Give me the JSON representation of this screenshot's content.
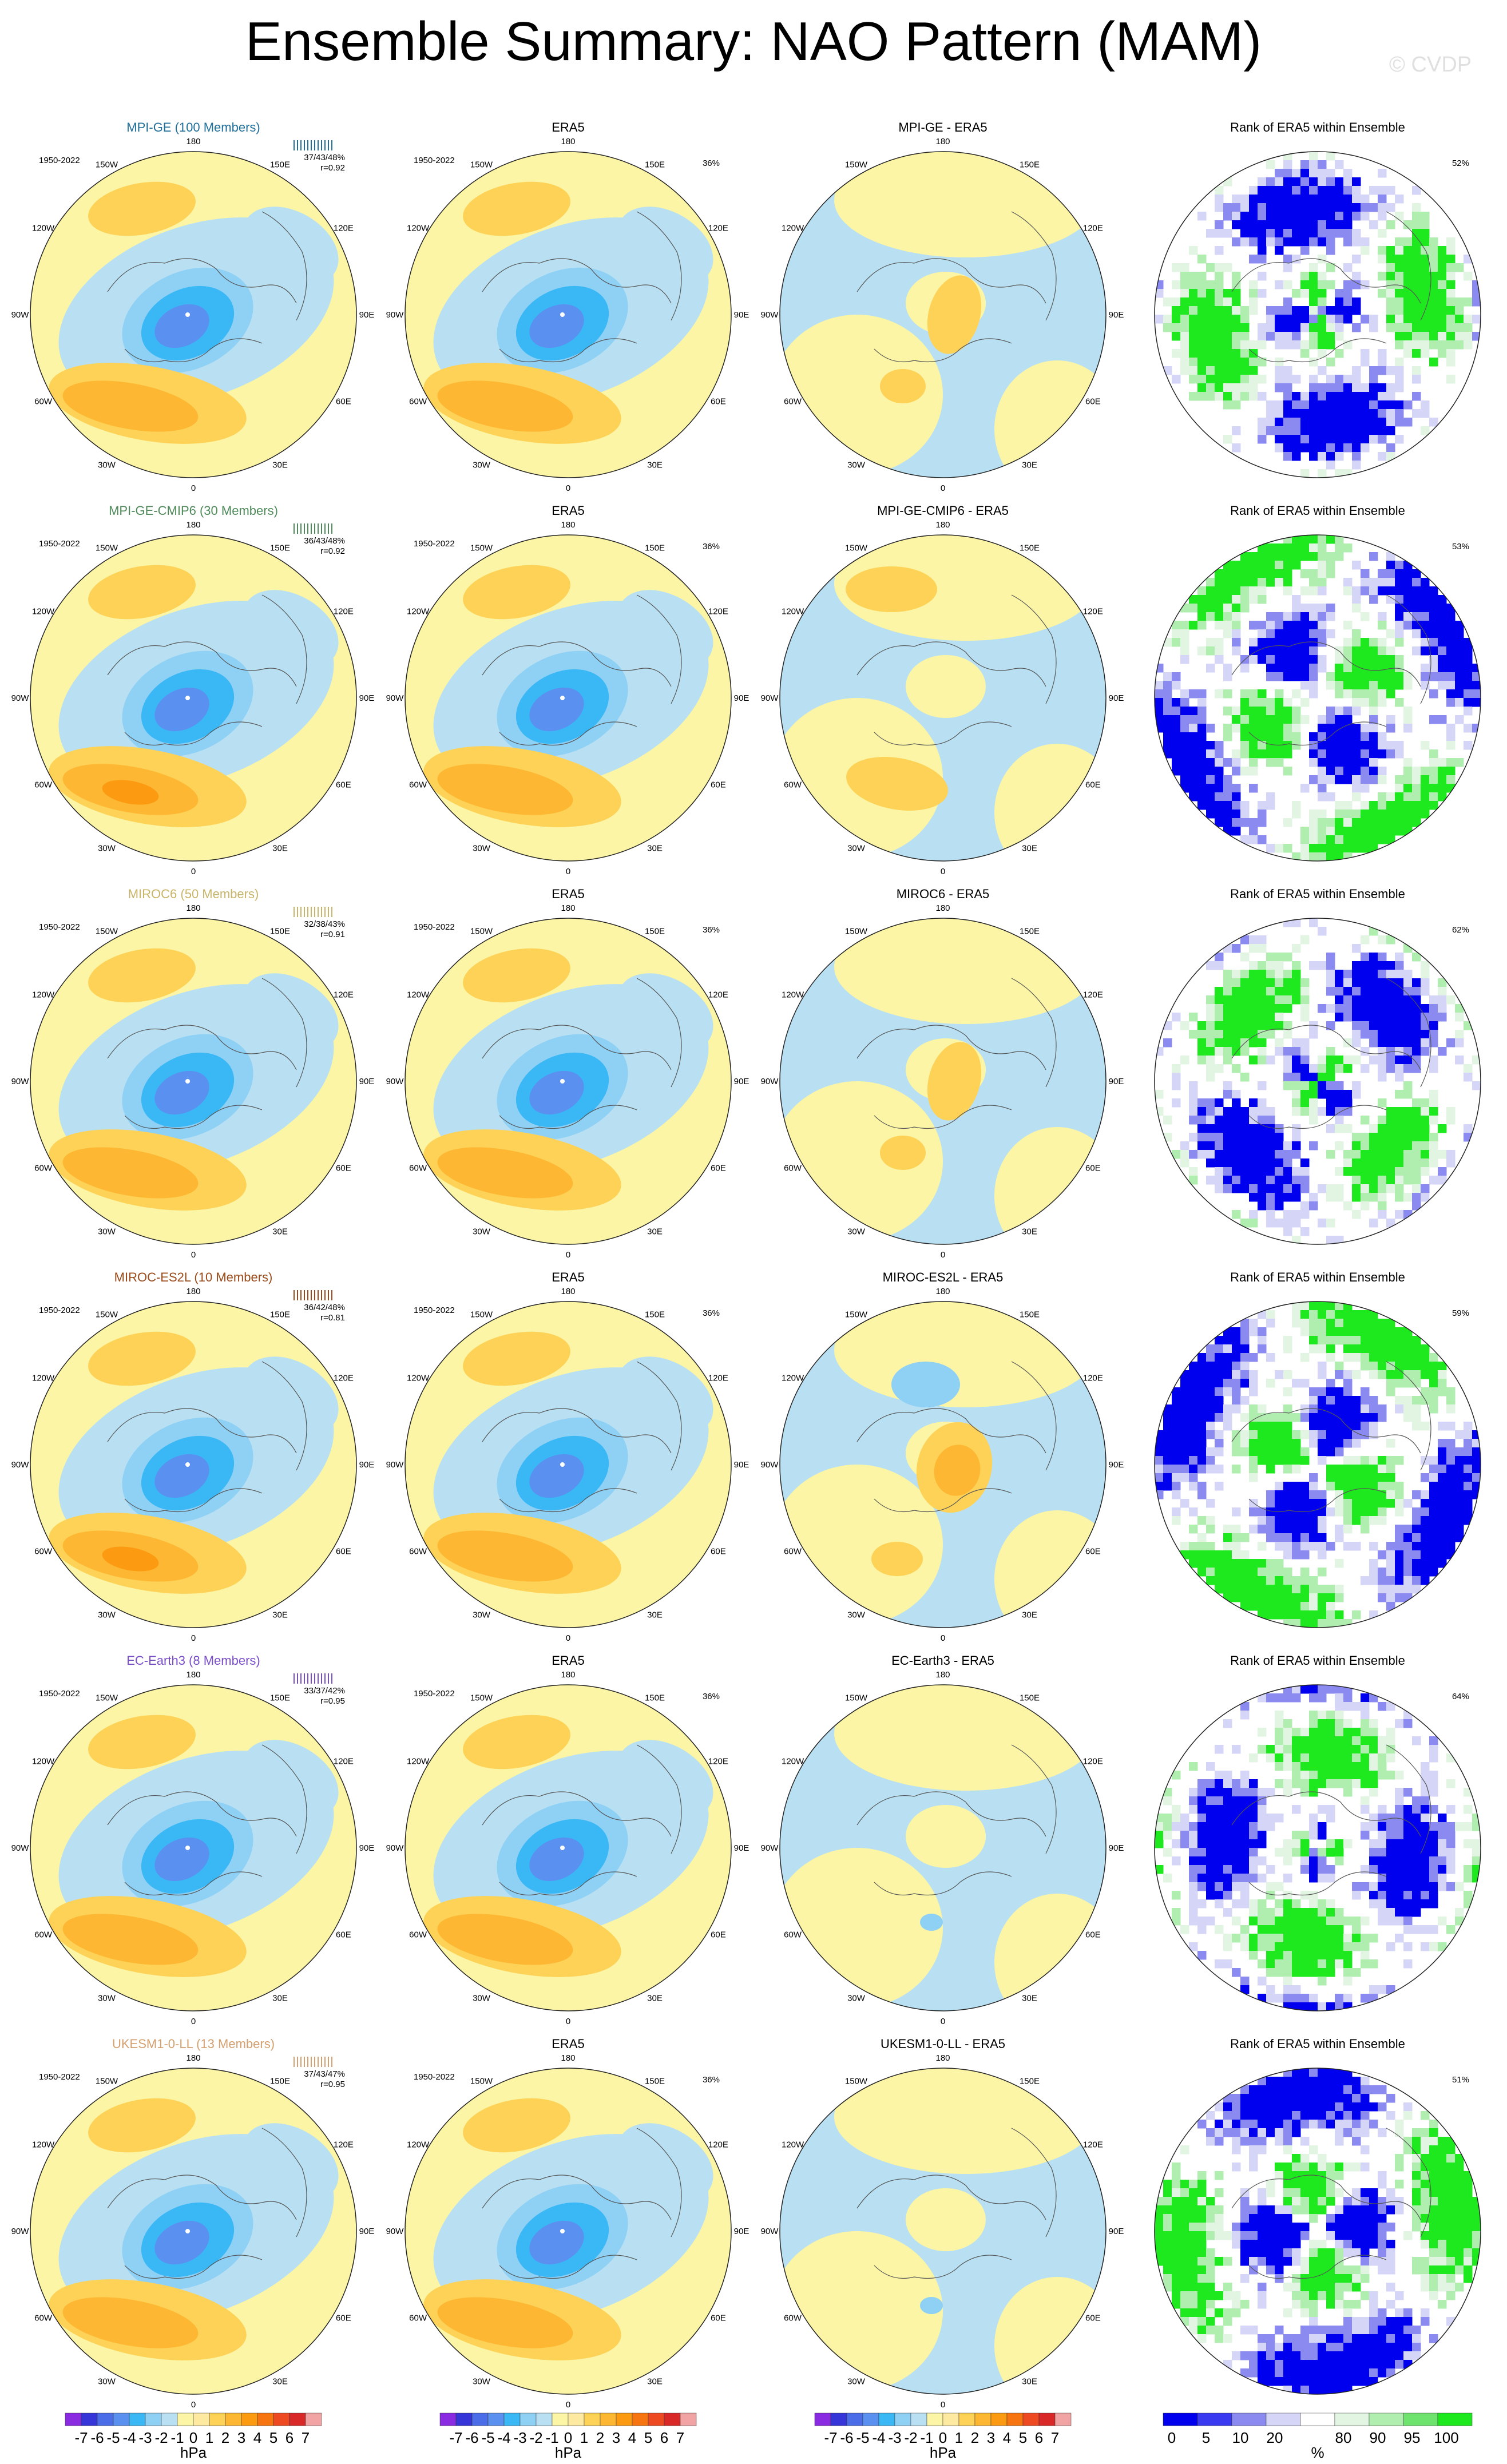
{
  "page": {
    "title": "Ensemble Summary: NAO Pattern (MAM)",
    "copyright": "© CVDP"
  },
  "period": "1950-2022",
  "lon_labels": [
    "180",
    "150E",
    "120E",
    "90E",
    "60E",
    "30E",
    "0",
    "30W",
    "60W",
    "90W",
    "120W",
    "150W"
  ],
  "colors": {
    "model_titles": [
      "#1f6f9a",
      "#4f8a5a",
      "#c8b56a",
      "#9a4a1a",
      "#7a4ec8",
      "#d4a070"
    ],
    "pattern_levels": [
      "#8a2be2",
      "#3535d8",
      "#4b6de8",
      "#5a90f0",
      "#3ab8f5",
      "#8fd0f5",
      "#b8e0f2",
      "#fbf5a5",
      "#fde9a0",
      "#fdd256",
      "#fdb733",
      "#fc9a12",
      "#f77510",
      "#ee4a22",
      "#d92828",
      "#f2a3a3"
    ],
    "rank_levels": [
      "#0000ee",
      "#3a3af0",
      "#8a8af0",
      "#d5d5f8",
      "#ffffff",
      "#e2f5e2",
      "#b0eeb0",
      "#6ee46e",
      "#1ee81e"
    ]
  },
  "rows": [
    {
      "model_title": "MPI-GE (100 Members)",
      "stats": "37/43/48%",
      "r": "r=0.92",
      "era5_title": "ERA5",
      "era5_pct": "36%",
      "diff_title": "MPI-GE - ERA5",
      "rank_title": "Rank of ERA5 within Ensemble",
      "rank_pct": "52%"
    },
    {
      "model_title": "MPI-GE-CMIP6 (30 Members)",
      "stats": "36/43/48%",
      "r": "r=0.92",
      "era5_title": "ERA5",
      "era5_pct": "36%",
      "diff_title": "MPI-GE-CMIP6 - ERA5",
      "rank_title": "Rank of ERA5 within Ensemble",
      "rank_pct": "53%"
    },
    {
      "model_title": "MIROC6 (50 Members)",
      "stats": "32/38/43%",
      "r": "r=0.91",
      "era5_title": "ERA5",
      "era5_pct": "36%",
      "diff_title": "MIROC6 - ERA5",
      "rank_title": "Rank of ERA5 within Ensemble",
      "rank_pct": "62%"
    },
    {
      "model_title": "MIROC-ES2L (10 Members)",
      "stats": "36/42/48%",
      "r": "r=0.81",
      "era5_title": "ERA5",
      "era5_pct": "36%",
      "diff_title": "MIROC-ES2L - ERA5",
      "rank_title": "Rank of ERA5 within Ensemble",
      "rank_pct": "59%"
    },
    {
      "model_title": "EC-Earth3 (8 Members)",
      "stats": "33/37/42%",
      "r": "r=0.95",
      "era5_title": "ERA5",
      "era5_pct": "36%",
      "diff_title": "EC-Earth3 - ERA5",
      "rank_title": "Rank of ERA5 within Ensemble",
      "rank_pct": "64%"
    },
    {
      "model_title": "UKESM1-0-LL (13 Members)",
      "stats": "37/43/47%",
      "r": "r=0.95",
      "era5_title": "ERA5",
      "era5_pct": "36%",
      "diff_title": "UKESM1-0-LL - ERA5",
      "rank_title": "Rank of ERA5 within Ensemble",
      "rank_pct": "51%"
    }
  ],
  "colorbars": {
    "pattern": {
      "labels": [
        "-7",
        "-6",
        "-5",
        "-4",
        "-3",
        "-2",
        "-1",
        "0",
        "1",
        "2",
        "3",
        "4",
        "5",
        "6",
        "7"
      ],
      "units": "hPa"
    },
    "rank": {
      "labels": [
        "0",
        "5",
        "10",
        "20",
        "80",
        "90",
        "95",
        "100"
      ],
      "units": "%"
    }
  },
  "chart_data": {
    "type": "heatmap",
    "title": "Ensemble Summary: NAO Pattern (MAM)",
    "projection": "polar stereographic, Northern Hemisphere",
    "pattern_units": "hPa",
    "rank_units": "%",
    "columns": [
      "model ensemble pattern",
      "ERA5",
      "model - ERA5",
      "rank of ERA5 within ensemble"
    ]
  }
}
